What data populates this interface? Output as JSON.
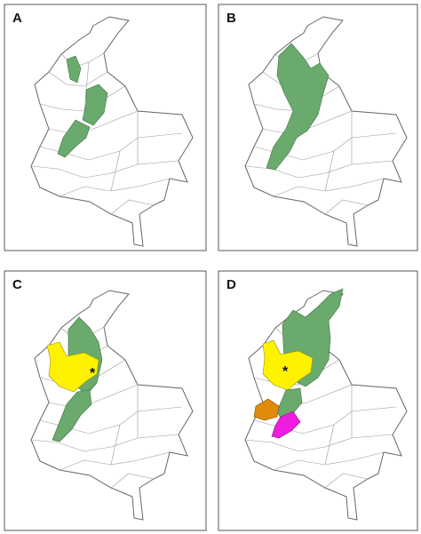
{
  "panels": [
    {
      "label": "A"
    },
    {
      "label": "B"
    },
    {
      "label": "C",
      "marker": "*"
    },
    {
      "label": "D",
      "marker": "*"
    }
  ]
}
